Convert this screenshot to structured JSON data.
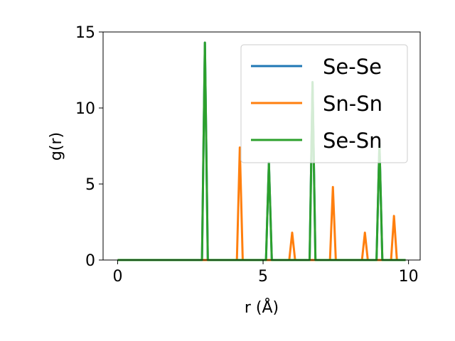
{
  "chart_data": {
    "type": "line",
    "xlabel": "r (Å)",
    "ylabel": "g(r)",
    "xlim": [
      -0.5,
      10.4
    ],
    "ylim": [
      0,
      15
    ],
    "xticks": [
      "0",
      "5",
      "10"
    ],
    "xtick_values": [
      0,
      5,
      10
    ],
    "yticks": [
      "0",
      "5",
      "10",
      "15"
    ],
    "ytick_values": [
      0,
      5,
      10,
      15
    ],
    "grid": false,
    "legend_position": "top-right",
    "series": [
      {
        "name": "Se-Se",
        "color": "#1f77b4",
        "x": [
          0.0,
          2.9,
          3.0,
          3.1,
          5.1,
          5.2,
          5.3,
          6.6,
          6.7,
          6.8,
          8.9,
          9.0,
          9.1,
          9.9
        ],
        "y": [
          0.0,
          0.0,
          14.3,
          0.0,
          0.0,
          6.4,
          0.0,
          0.0,
          11.7,
          0.0,
          0.0,
          7.7,
          0.0,
          0.0
        ]
      },
      {
        "name": "Sn-Sn",
        "color": "#ff7f0e",
        "x": [
          0.0,
          4.1,
          4.2,
          4.3,
          5.9,
          6.0,
          6.1,
          7.3,
          7.4,
          7.5,
          8.4,
          8.5,
          8.6,
          9.4,
          9.5,
          9.6,
          9.9
        ],
        "y": [
          0.0,
          0.0,
          7.4,
          0.0,
          0.0,
          1.8,
          0.0,
          0.0,
          4.8,
          0.0,
          0.0,
          1.8,
          0.0,
          0.0,
          2.9,
          0.0,
          0.0
        ]
      },
      {
        "name": "Se-Sn",
        "color": "#2ca02c",
        "x": [
          0.0,
          2.9,
          3.0,
          3.1,
          5.1,
          5.2,
          5.3,
          6.6,
          6.7,
          6.8,
          8.9,
          9.0,
          9.1,
          9.9
        ],
        "y": [
          0.0,
          0.0,
          14.3,
          0.0,
          0.0,
          6.4,
          0.0,
          0.0,
          11.7,
          0.0,
          0.0,
          7.7,
          0.0,
          0.0
        ]
      }
    ]
  }
}
